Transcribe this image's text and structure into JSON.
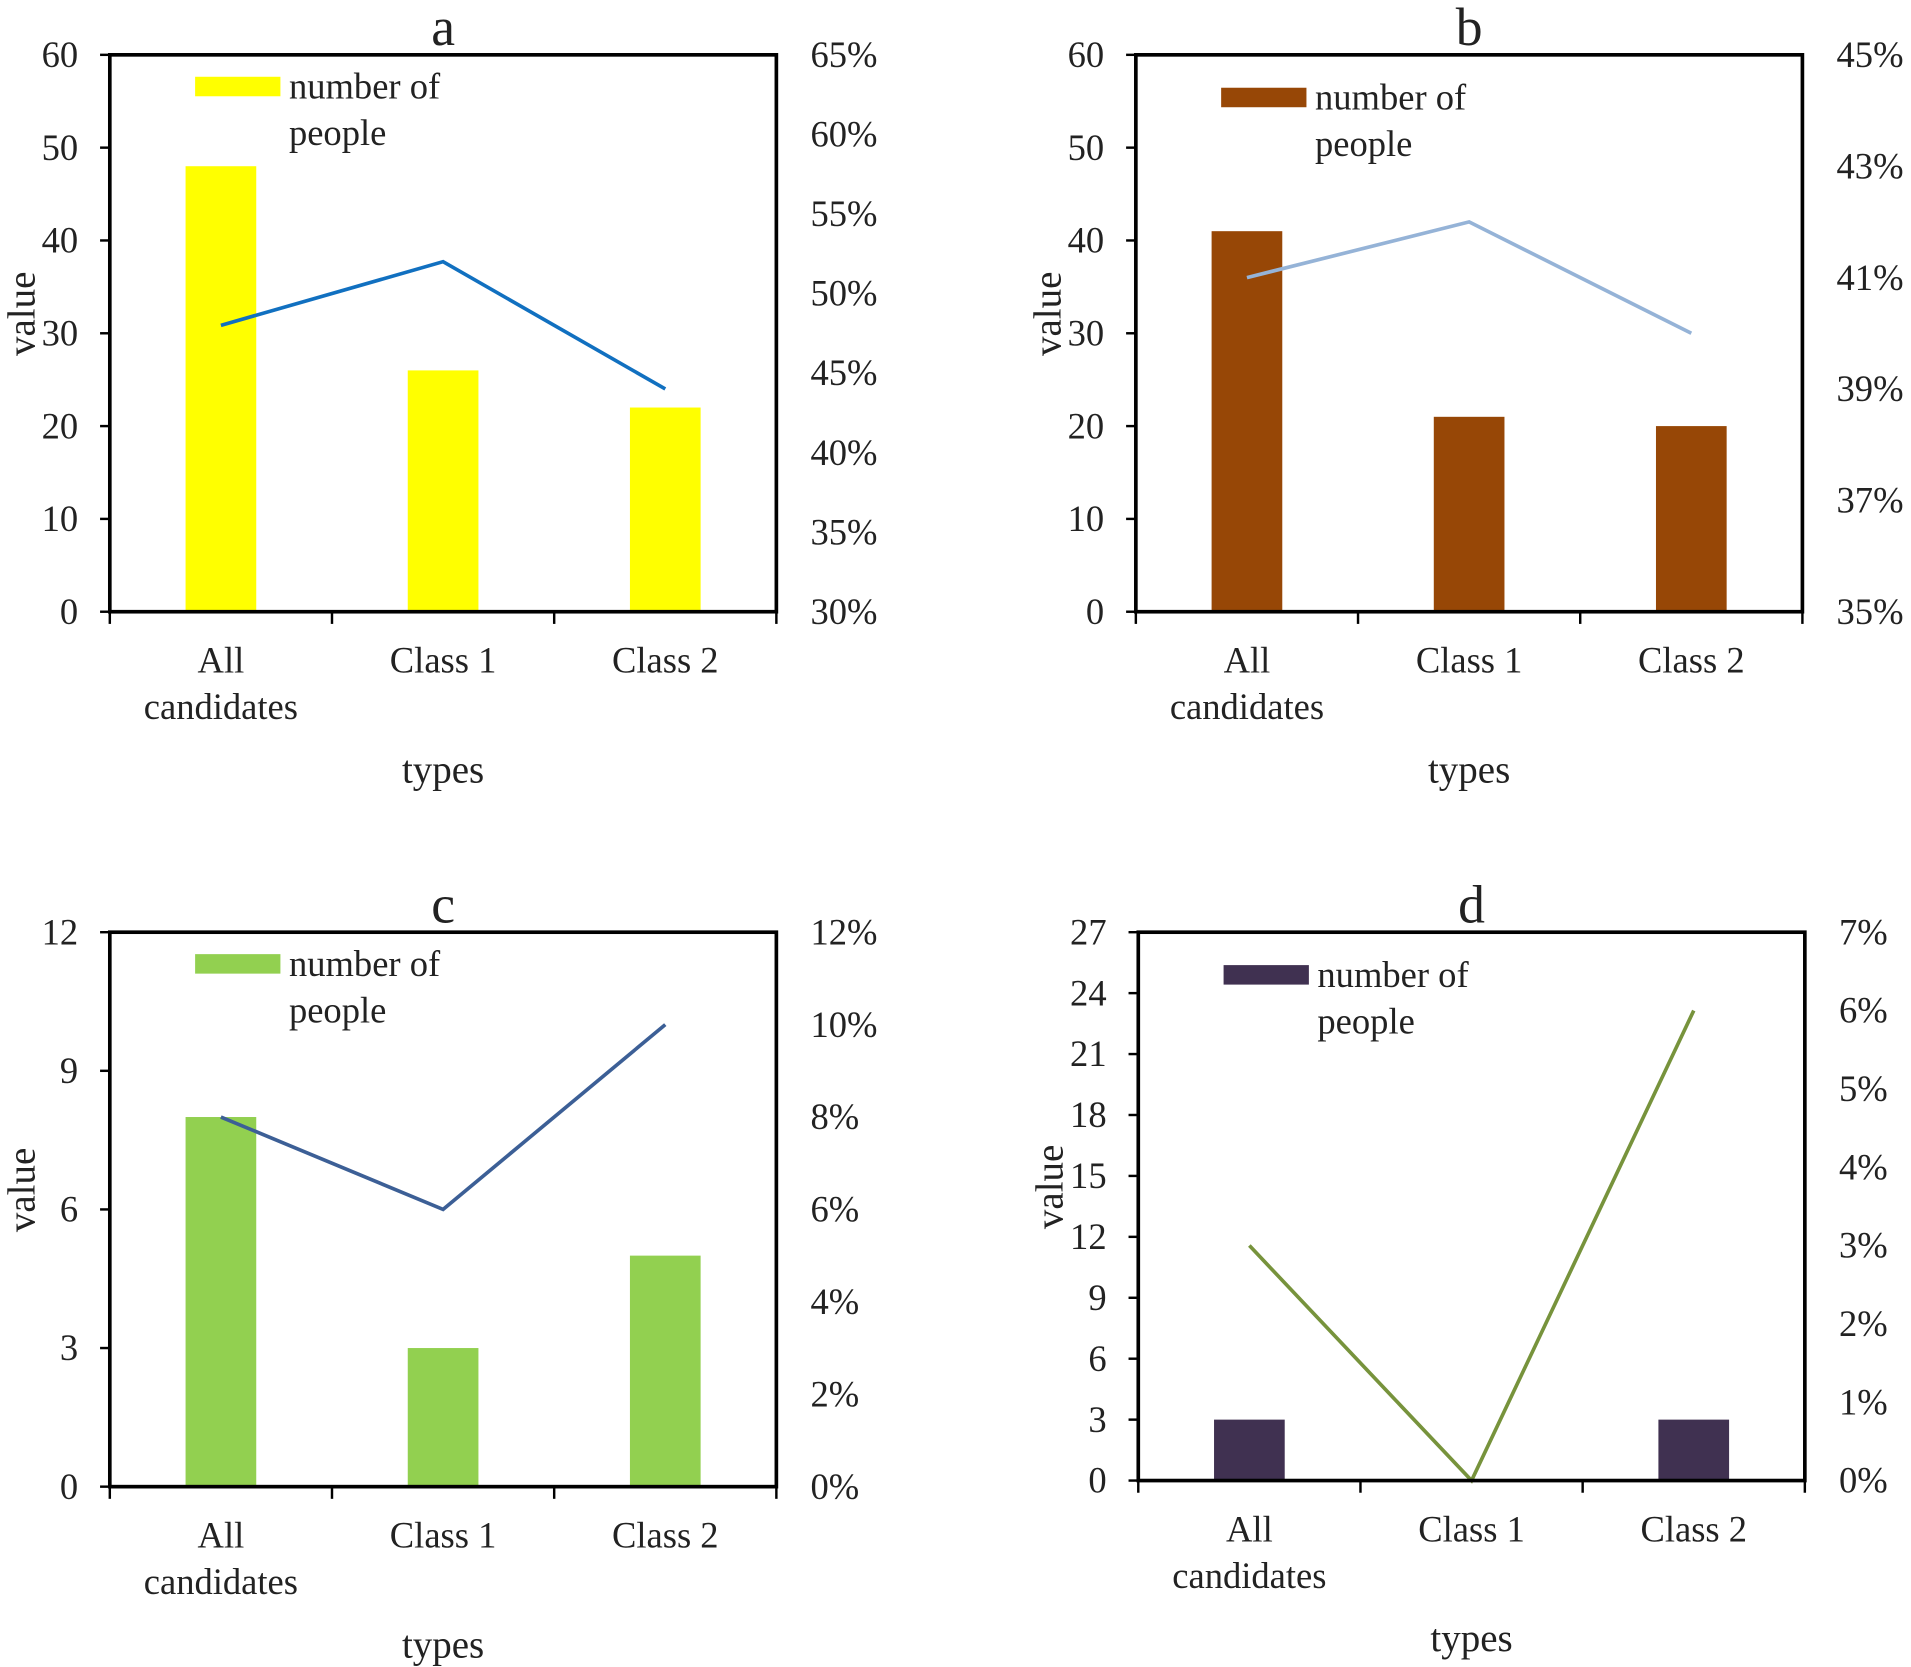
{
  "chart_data": [
    {
      "type": "bar+line",
      "title": "a",
      "xlabel": "types",
      "ylabel": "value",
      "categories": [
        "All candidates",
        "Class 1",
        "Class 2"
      ],
      "left_axis": {
        "ylim": [
          0,
          60
        ],
        "ticks": [
          "0",
          "10",
          "20",
          "30",
          "40",
          "50",
          "60"
        ]
      },
      "right_axis": {
        "ylim": [
          30,
          65
        ],
        "ticks": [
          "30%",
          "35%",
          "40%",
          "45%",
          "50%",
          "55%",
          "60%",
          "65%"
        ]
      },
      "bar_series": {
        "name": "number of people",
        "values": [
          48,
          26,
          22
        ],
        "color": "#ffff00"
      },
      "line_series": {
        "values": [
          48,
          52,
          44
        ],
        "unit": "%",
        "color": "#1170c0"
      },
      "legend": "top-left",
      "grid": false
    },
    {
      "type": "bar+line",
      "title": "b",
      "xlabel": "types",
      "ylabel": "value",
      "categories": [
        "All candidates",
        "Class 1",
        "Class 2"
      ],
      "left_axis": {
        "ylim": [
          0,
          60
        ],
        "ticks": [
          "0",
          "10",
          "20",
          "30",
          "40",
          "50",
          "60"
        ]
      },
      "right_axis": {
        "ylim": [
          35,
          45
        ],
        "ticks": [
          "35%",
          "37%",
          "39%",
          "41%",
          "43%",
          "45%"
        ]
      },
      "bar_series": {
        "name": "number of people",
        "values": [
          41,
          21,
          20
        ],
        "color": "#974706"
      },
      "line_series": {
        "values": [
          41,
          42,
          40
        ],
        "unit": "%",
        "color": "#95b3d7"
      },
      "legend": "top-left",
      "grid": false
    },
    {
      "type": "bar+line",
      "title": "c",
      "xlabel": "types",
      "ylabel": "value",
      "categories": [
        "All candidates",
        "Class 1",
        "Class 2"
      ],
      "left_axis": {
        "ylim": [
          0,
          12
        ],
        "ticks": [
          "0",
          "3",
          "6",
          "9",
          "12"
        ]
      },
      "right_axis": {
        "ylim": [
          0,
          12
        ],
        "ticks": [
          "0%",
          "2%",
          "4%",
          "6%",
          "8%",
          "10%",
          "12%"
        ]
      },
      "bar_series": {
        "name": "number of people",
        "values": [
          8,
          3,
          5
        ],
        "color": "#92d050"
      },
      "line_series": {
        "values": [
          8,
          6,
          10
        ],
        "unit": "%",
        "color": "#3c5f96"
      },
      "legend": "top-left",
      "grid": false
    },
    {
      "type": "bar+line",
      "title": "d",
      "xlabel": "types",
      "ylabel": "value",
      "categories": [
        "All candidates",
        "Class 1",
        "Class 2"
      ],
      "left_axis": {
        "ylim": [
          0,
          27
        ],
        "ticks": [
          "0",
          "3",
          "6",
          "9",
          "12",
          "15",
          "18",
          "21",
          "24",
          "27"
        ]
      },
      "right_axis": {
        "ylim": [
          0,
          7
        ],
        "ticks": [
          "0%",
          "1%",
          "2%",
          "3%",
          "4%",
          "5%",
          "6%",
          "7%"
        ]
      },
      "bar_series": {
        "name": "number of people",
        "values": [
          3,
          0,
          3
        ],
        "color": "#403151"
      },
      "line_series": {
        "values": [
          3,
          0,
          6
        ],
        "unit": "%",
        "color": "#77933c"
      },
      "legend": "top-left",
      "grid": false
    }
  ]
}
